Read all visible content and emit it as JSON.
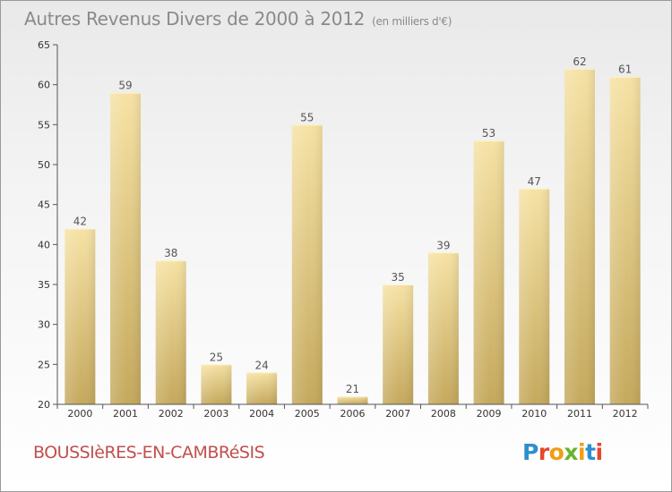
{
  "title": "Autres Revenus Divers de 2000 à 2012",
  "subtitle": "(en milliers d'€)",
  "place_name": "BOUSSIèRES-EN-CAMBRéSIS",
  "logo_text": "Proxiti",
  "logo_colors": [
    "#2d8fd0",
    "#e8452c",
    "#f39c12",
    "#6ab42d",
    "#f39c12",
    "#2d8fd0",
    "#e8452c"
  ],
  "colors": {
    "bar_light": "#f6e2a4",
    "bar_dark": "#c4a85c",
    "axis": "#555555",
    "grid": "#d9d9d9"
  },
  "chart_data": {
    "type": "bar",
    "categories": [
      "2000",
      "2001",
      "2002",
      "2003",
      "2004",
      "2005",
      "2006",
      "2007",
      "2008",
      "2009",
      "2010",
      "2011",
      "2012"
    ],
    "values": [
      42,
      59,
      38,
      25,
      24,
      55,
      21,
      35,
      39,
      53,
      47,
      62,
      61
    ],
    "title": "Autres Revenus Divers de 2000 à 2012",
    "xlabel": "",
    "ylabel": "",
    "ylim": [
      20,
      65
    ],
    "yticks": [
      20,
      25,
      30,
      35,
      40,
      45,
      50,
      55,
      60,
      65
    ],
    "grid": false,
    "data_labels": true
  }
}
